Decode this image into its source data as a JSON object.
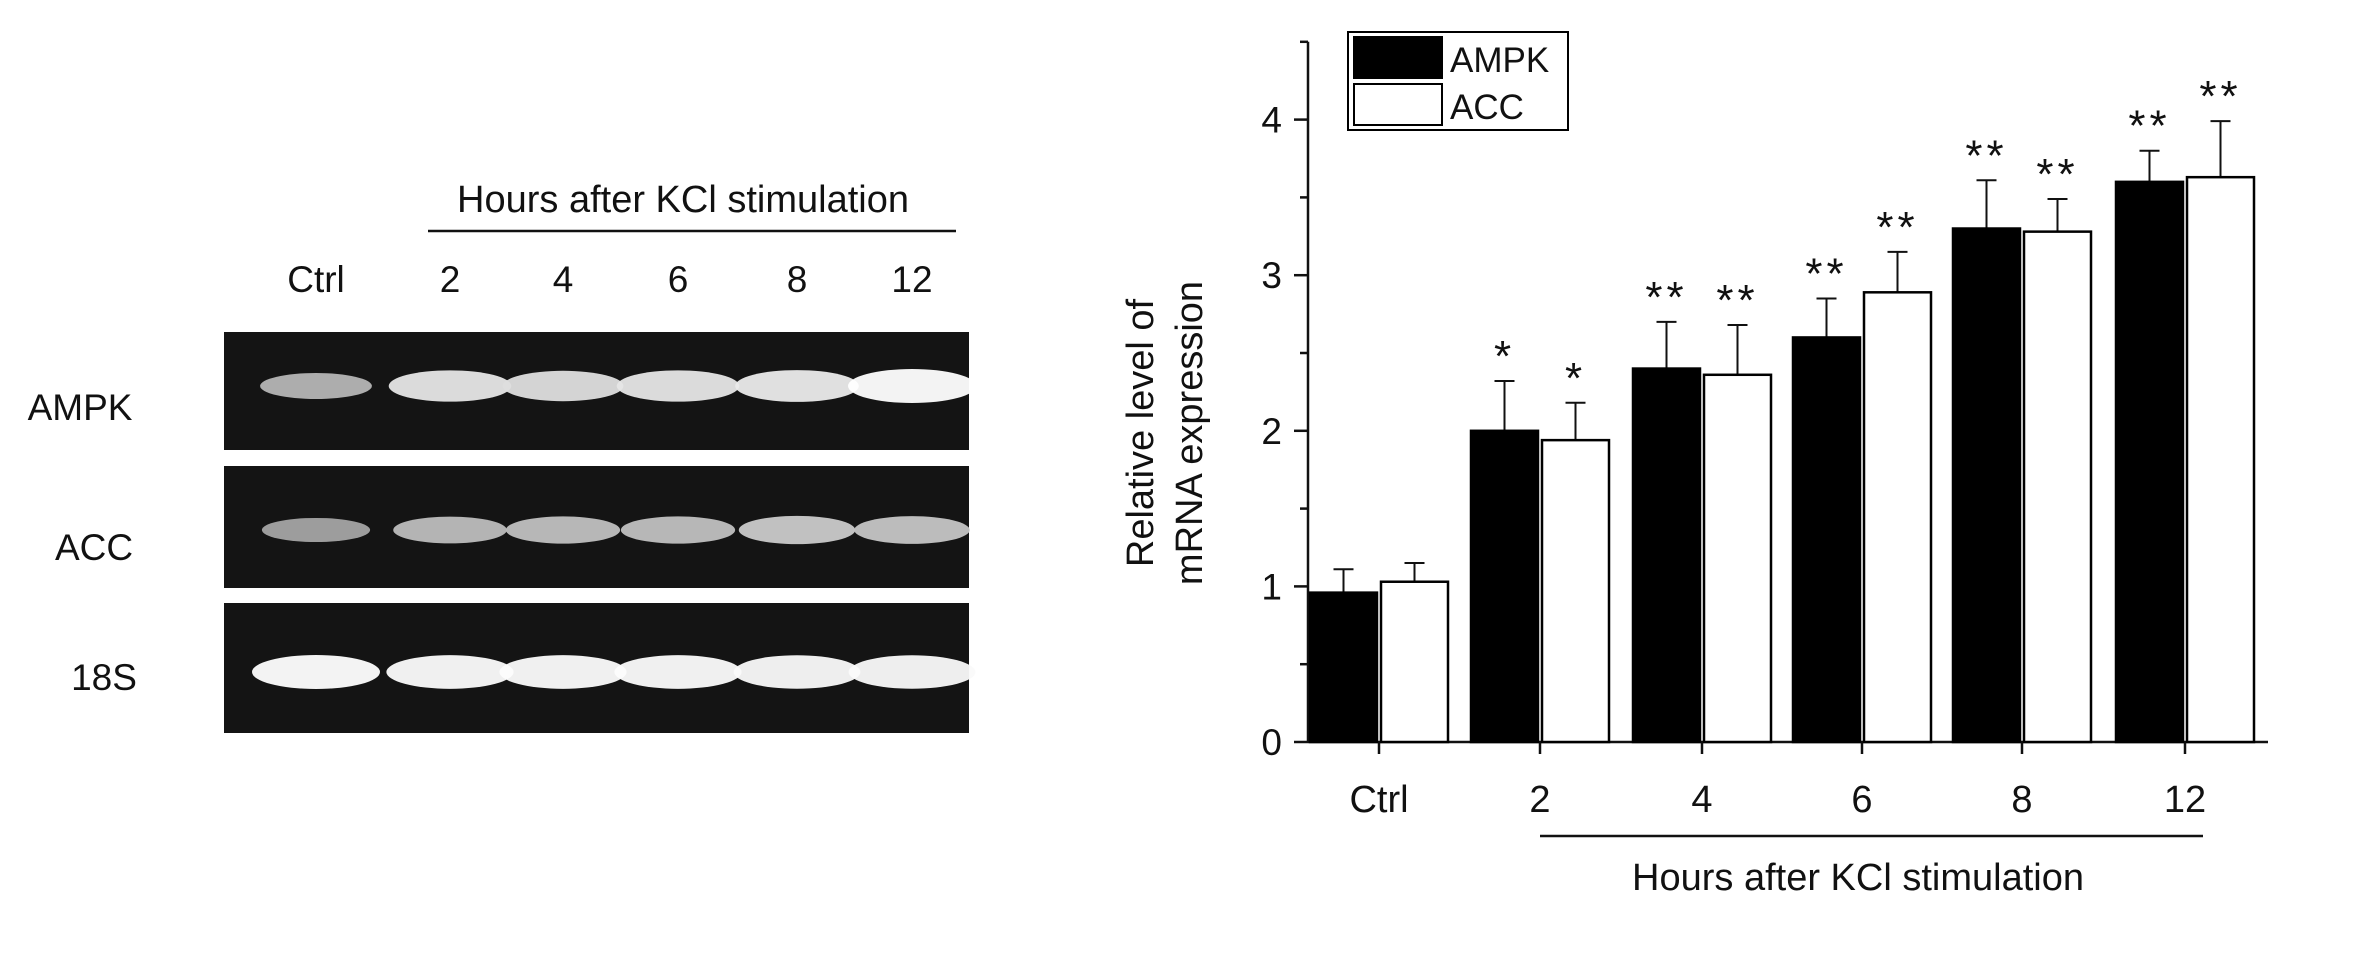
{
  "gel": {
    "header": "Hours after KCl stimulation",
    "lanes": [
      "Ctrl",
      "2",
      "4",
      "6",
      "8",
      "12"
    ],
    "rows": [
      {
        "label": "AMPK",
        "band_intensity": [
          0.55,
          0.85,
          0.8,
          0.85,
          0.88,
          1.0
        ]
      },
      {
        "label": "ACC",
        "band_intensity": [
          0.45,
          0.6,
          0.62,
          0.62,
          0.68,
          0.65
        ]
      },
      {
        "label": "18S",
        "band_intensity": [
          1.0,
          0.98,
          0.98,
          0.98,
          0.97,
          0.97
        ]
      }
    ]
  },
  "chart_data": {
    "type": "bar",
    "xlabel": "Hours after KCl stimulation",
    "ylabel_lines": [
      "Relative level of",
      "mRNA expression"
    ],
    "categories": [
      "Ctrl",
      "2",
      "4",
      "6",
      "8",
      "12"
    ],
    "ylim": [
      0,
      4.5
    ],
    "yticks": [
      0,
      1,
      2,
      3,
      4
    ],
    "legend_position": "top-left",
    "series": [
      {
        "name": "AMPK",
        "color": "#000000",
        "values": [
          0.96,
          2.0,
          2.4,
          2.6,
          3.3,
          3.6
        ],
        "errors": [
          0.15,
          0.32,
          0.3,
          0.25,
          0.31,
          0.2
        ],
        "sig": [
          "",
          "*",
          "**",
          "**",
          "**",
          "**"
        ]
      },
      {
        "name": "ACC",
        "color": "#ffffff",
        "values": [
          1.03,
          1.94,
          2.36,
          2.89,
          3.28,
          3.63
        ],
        "errors": [
          0.12,
          0.24,
          0.32,
          0.26,
          0.21,
          0.36
        ],
        "sig": [
          "",
          "*",
          "**",
          "**",
          "**",
          "**"
        ]
      }
    ]
  }
}
